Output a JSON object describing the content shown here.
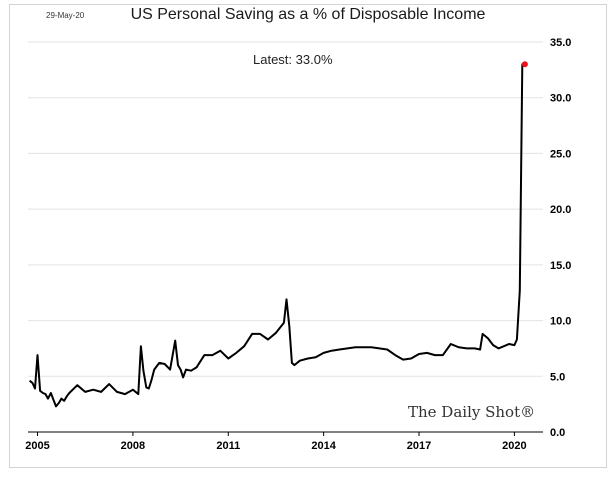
{
  "header": {
    "date": "29-May-20",
    "title": "US Personal Saving as a % of Disposable Income"
  },
  "annotation": {
    "latest": "Latest:  33.0%"
  },
  "watermark": "The Daily Shot®",
  "colors": {
    "line": "#000000",
    "marker": "#e8141b",
    "grid": "#e3e3e3",
    "axis": "#000000"
  },
  "chart_data": {
    "type": "line",
    "title": "US Personal Saving as a % of Disposable Income",
    "xlabel": "",
    "ylabel": "",
    "x_ticks": [
      "2005",
      "2008",
      "2011",
      "2014",
      "2017",
      "2020"
    ],
    "x_range": [
      2004.7,
      2020.9
    ],
    "y_ticks": [
      "0.0",
      "5.0",
      "10.0",
      "15.0",
      "20.0",
      "25.0",
      "30.0",
      "35.0"
    ],
    "y_range": [
      0,
      35
    ],
    "y_axis_position": "right",
    "grid": "horizontal",
    "legend": "none",
    "last_point_marker": true,
    "series": [
      {
        "x": [
          2004.75,
          2004.84,
          2004.92,
          2005.0,
          2005.08,
          2005.17,
          2005.25,
          2005.33,
          2005.42,
          2005.5,
          2005.58,
          2005.67,
          2005.75,
          2005.84,
          2005.92,
          2006.0,
          2006.25,
          2006.5,
          2006.75,
          2007.0,
          2007.25,
          2007.5,
          2007.75,
          2008.0,
          2008.17,
          2008.25,
          2008.33,
          2008.42,
          2008.5,
          2008.58,
          2008.67,
          2008.83,
          2009.0,
          2009.17,
          2009.33,
          2009.42,
          2009.5,
          2009.58,
          2009.67,
          2009.83,
          2010.0,
          2010.25,
          2010.5,
          2010.75,
          2011.0,
          2011.25,
          2011.5,
          2011.75,
          2012.0,
          2012.25,
          2012.5,
          2012.75,
          2012.83,
          2012.92,
          2013.0,
          2013.08,
          2013.25,
          2013.5,
          2013.75,
          2014.0,
          2014.25,
          2014.5,
          2014.75,
          2015.0,
          2015.25,
          2015.5,
          2015.75,
          2016.0,
          2016.25,
          2016.5,
          2016.75,
          2017.0,
          2017.25,
          2017.5,
          2017.75,
          2018.0,
          2018.25,
          2018.5,
          2018.75,
          2018.92,
          2019.0,
          2019.17,
          2019.33,
          2019.5,
          2019.67,
          2019.83,
          2020.0,
          2020.08,
          2020.17,
          2020.25,
          2020.33
        ],
        "y": [
          4.6,
          4.4,
          3.9,
          6.9,
          3.7,
          3.5,
          3.4,
          3.0,
          3.5,
          2.9,
          2.3,
          2.6,
          3.0,
          2.8,
          3.2,
          3.5,
          4.2,
          3.6,
          3.8,
          3.6,
          4.3,
          3.6,
          3.4,
          3.8,
          3.4,
          7.7,
          5.5,
          4.0,
          3.9,
          4.6,
          5.6,
          6.2,
          6.1,
          5.6,
          8.2,
          6.0,
          5.6,
          4.9,
          5.6,
          5.5,
          5.8,
          6.9,
          6.9,
          7.3,
          6.6,
          7.1,
          7.7,
          8.8,
          8.8,
          8.3,
          8.9,
          9.8,
          11.9,
          9.5,
          6.2,
          6.0,
          6.4,
          6.6,
          6.7,
          7.1,
          7.3,
          7.4,
          7.5,
          7.6,
          7.6,
          7.6,
          7.5,
          7.4,
          6.9,
          6.5,
          6.6,
          7.0,
          7.1,
          6.9,
          6.9,
          7.9,
          7.6,
          7.5,
          7.5,
          7.4,
          8.8,
          8.4,
          7.8,
          7.5,
          7.7,
          7.9,
          7.8,
          8.3,
          12.7,
          33.0,
          33.0
        ]
      }
    ],
    "latest_value": 33.0
  }
}
